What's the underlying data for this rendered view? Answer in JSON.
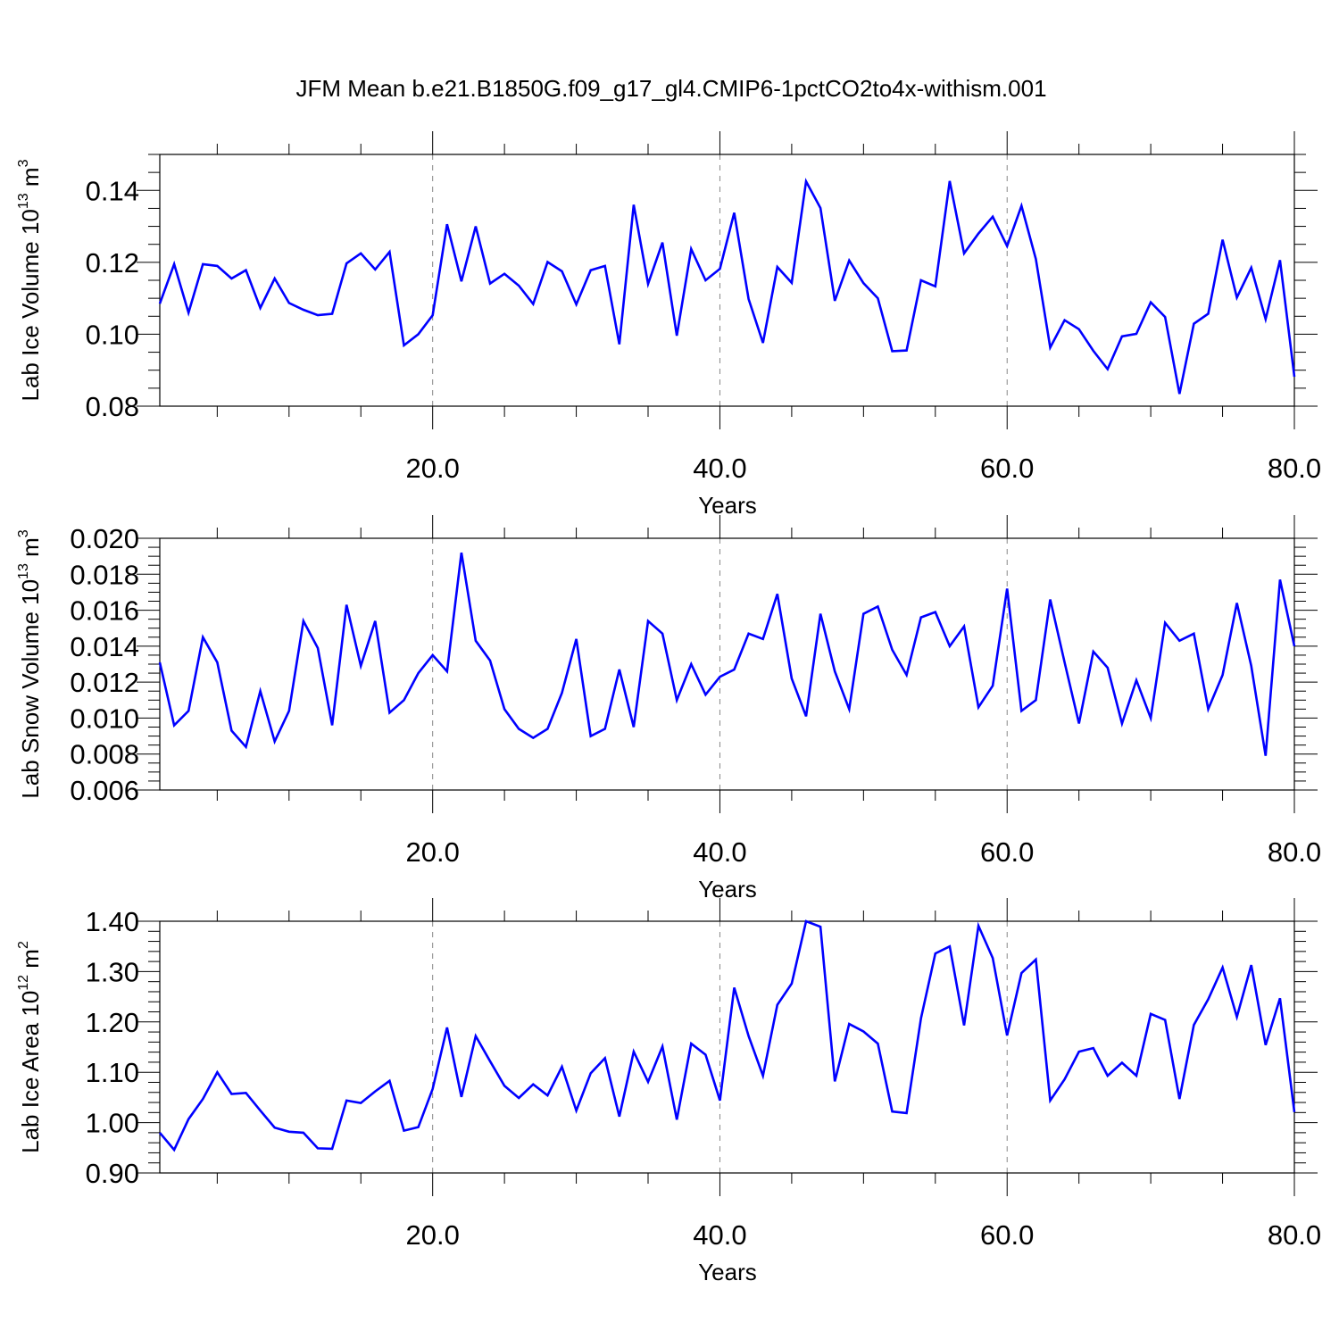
{
  "title": "JFM Mean b.e21.B1850G.f09_g17_gl4.CMIP6-1pctCO2to4x-withism.001",
  "colors": {
    "series": "#0000ff",
    "axis": "#000000",
    "grid": "#888888"
  },
  "chart_data": [
    {
      "type": "line",
      "ylabel_main": "Lab Ice Volume 10",
      "ylabel_exp": "13",
      "ylabel_unit": " m",
      "ylabel_unit_exp": "3",
      "xlabel": "Years",
      "xlim": [
        1,
        80
      ],
      "ylim": [
        0.08,
        0.15
      ],
      "xticks": [
        20,
        40,
        60,
        80
      ],
      "xtick_labels": [
        "20.0",
        "40.0",
        "60.0",
        "80.0"
      ],
      "yticks": [
        0.08,
        0.1,
        0.12,
        0.14
      ],
      "ytick_labels": [
        "0.08",
        "0.10",
        "0.12",
        "0.14"
      ],
      "ymajor_step": 0.02,
      "yminor_step": 0.005,
      "xgrid": [
        20,
        40,
        60
      ],
      "series": [
        {
          "x": [
            1,
            2,
            3,
            4,
            5,
            6,
            7,
            8,
            9,
            10,
            11,
            12,
            13,
            14,
            15,
            16,
            17,
            18,
            19,
            20,
            21,
            22,
            23,
            24,
            25,
            26,
            27,
            28,
            29,
            30,
            31,
            32,
            33,
            34,
            35,
            36,
            37,
            38,
            39,
            40,
            41,
            42,
            43,
            44,
            45,
            46,
            47,
            48,
            49,
            50,
            51,
            52,
            53,
            54,
            55,
            56,
            57,
            58,
            59,
            60,
            61,
            62,
            63,
            64,
            65,
            66,
            67,
            68,
            69,
            70,
            71,
            72,
            73,
            74,
            75,
            76,
            77,
            78,
            79,
            80
          ],
          "values": [
            0.1085,
            0.1195,
            0.106,
            0.1195,
            0.119,
            0.1155,
            0.1178,
            0.1073,
            0.1155,
            0.1087,
            0.1068,
            0.1053,
            0.1057,
            0.1197,
            0.1225,
            0.118,
            0.1229,
            0.0969,
            0.1,
            0.1053,
            0.1306,
            0.1147,
            0.13,
            0.1141,
            0.1168,
            0.1135,
            0.1084,
            0.1201,
            0.1175,
            0.1083,
            0.1178,
            0.119,
            0.0972,
            0.136,
            0.114,
            0.1255,
            0.0996,
            0.1237,
            0.115,
            0.1182,
            0.1338,
            0.1098,
            0.0976,
            0.1187,
            0.1143,
            0.1425,
            0.1351,
            0.1093,
            0.1205,
            0.1142,
            0.11,
            0.0953,
            0.0955,
            0.115,
            0.1133,
            0.1426,
            0.1225,
            0.128,
            0.1327,
            0.1245,
            0.1357,
            0.1209,
            0.0963,
            0.1039,
            0.1014,
            0.0954,
            0.0903,
            0.0994,
            0.1001,
            0.1089,
            0.1048,
            0.0834,
            0.1029,
            0.1057,
            0.1263,
            0.1102,
            0.1185,
            0.1042,
            0.1206,
            0.0882
          ]
        }
      ]
    },
    {
      "type": "line",
      "ylabel_main": "Lab Snow Volume 10",
      "ylabel_exp": "13",
      "ylabel_unit": " m",
      "ylabel_unit_exp": "3",
      "xlabel": "Years",
      "xlim": [
        1,
        80
      ],
      "ylim": [
        0.006,
        0.02
      ],
      "xticks": [
        20,
        40,
        60,
        80
      ],
      "xtick_labels": [
        "20.0",
        "40.0",
        "60.0",
        "80.0"
      ],
      "yticks": [
        0.006,
        0.008,
        0.01,
        0.012,
        0.014,
        0.016,
        0.018,
        0.02
      ],
      "ytick_labels": [
        "0.006",
        "0.008",
        "0.010",
        "0.012",
        "0.014",
        "0.016",
        "0.018",
        "0.020"
      ],
      "ymajor_step": 0.002,
      "yminor_step": 0.0005,
      "xgrid": [
        20,
        40,
        60
      ],
      "series": [
        {
          "x": [
            1,
            2,
            3,
            4,
            5,
            6,
            7,
            8,
            9,
            10,
            11,
            12,
            13,
            14,
            15,
            16,
            17,
            18,
            19,
            20,
            21,
            22,
            23,
            24,
            25,
            26,
            27,
            28,
            29,
            30,
            31,
            32,
            33,
            34,
            35,
            36,
            37,
            38,
            39,
            40,
            41,
            42,
            43,
            44,
            45,
            46,
            47,
            48,
            49,
            50,
            51,
            52,
            53,
            54,
            55,
            56,
            57,
            58,
            59,
            60,
            61,
            62,
            63,
            64,
            65,
            66,
            67,
            68,
            69,
            70,
            71,
            72,
            73,
            74,
            75,
            76,
            77,
            78,
            79,
            80
          ],
          "values": [
            0.0131,
            0.0096,
            0.0104,
            0.0145,
            0.0131,
            0.0093,
            0.0084,
            0.0115,
            0.0087,
            0.0104,
            0.0154,
            0.0139,
            0.0096,
            0.0163,
            0.0129,
            0.0154,
            0.0103,
            0.011,
            0.0125,
            0.0135,
            0.0126,
            0.0192,
            0.0143,
            0.0132,
            0.0105,
            0.0094,
            0.0089,
            0.0094,
            0.0114,
            0.0144,
            0.009,
            0.0094,
            0.0127,
            0.0095,
            0.0154,
            0.0147,
            0.011,
            0.013,
            0.0113,
            0.0123,
            0.0127,
            0.0147,
            0.0144,
            0.0169,
            0.0122,
            0.0101,
            0.0158,
            0.0126,
            0.0105,
            0.0158,
            0.0162,
            0.0138,
            0.0124,
            0.0156,
            0.0159,
            0.014,
            0.0151,
            0.0106,
            0.0118,
            0.0172,
            0.0104,
            0.011,
            0.0166,
            0.0131,
            0.0097,
            0.0137,
            0.0128,
            0.0097,
            0.0121,
            0.01,
            0.0153,
            0.0143,
            0.0147,
            0.0105,
            0.0124,
            0.0164,
            0.0129,
            0.0079,
            0.0177,
            0.014
          ]
        }
      ]
    },
    {
      "type": "line",
      "ylabel_main": "Lab Ice Area 10",
      "ylabel_exp": "12",
      "ylabel_unit": " m",
      "ylabel_unit_exp": "2",
      "xlabel": "Years",
      "xlim": [
        1,
        80
      ],
      "ylim": [
        0.9,
        1.4
      ],
      "xticks": [
        20,
        40,
        60,
        80
      ],
      "xtick_labels": [
        "20.0",
        "40.0",
        "60.0",
        "80.0"
      ],
      "yticks": [
        0.9,
        1.0,
        1.1,
        1.2,
        1.3,
        1.4
      ],
      "ytick_labels": [
        "0.90",
        "1.00",
        "1.10",
        "1.20",
        "1.30",
        "1.40"
      ],
      "ymajor_step": 0.1,
      "yminor_step": 0.02,
      "xgrid": [
        20,
        40,
        60
      ],
      "series": [
        {
          "x": [
            1,
            2,
            3,
            4,
            5,
            6,
            7,
            8,
            9,
            10,
            11,
            12,
            13,
            14,
            15,
            16,
            17,
            18,
            19,
            20,
            21,
            22,
            23,
            24,
            25,
            26,
            27,
            28,
            29,
            30,
            31,
            32,
            33,
            34,
            35,
            36,
            37,
            38,
            39,
            40,
            41,
            42,
            43,
            44,
            45,
            46,
            47,
            48,
            49,
            50,
            51,
            52,
            53,
            54,
            55,
            56,
            57,
            58,
            59,
            60,
            61,
            62,
            63,
            64,
            65,
            66,
            67,
            68,
            69,
            70,
            71,
            72,
            73,
            74,
            75,
            76,
            77,
            78,
            79,
            80
          ],
          "values": [
            0.98,
            0.946,
            1.007,
            1.047,
            1.1,
            1.057,
            1.059,
            1.024,
            0.99,
            0.982,
            0.98,
            0.949,
            0.948,
            1.044,
            1.039,
            1.062,
            1.083,
            0.984,
            0.991,
            1.067,
            1.189,
            1.051,
            1.172,
            1.122,
            1.073,
            1.049,
            1.076,
            1.054,
            1.111,
            1.024,
            1.098,
            1.128,
            1.012,
            1.141,
            1.081,
            1.151,
            1.006,
            1.157,
            1.135,
            1.044,
            1.268,
            1.172,
            1.093,
            1.234,
            1.276,
            1.4,
            1.389,
            1.082,
            1.196,
            1.181,
            1.157,
            1.022,
            1.019,
            1.207,
            1.336,
            1.35,
            1.193,
            1.391,
            1.327,
            1.173,
            1.297,
            1.324,
            1.044,
            1.086,
            1.141,
            1.148,
            1.093,
            1.119,
            1.093,
            1.216,
            1.204,
            1.047,
            1.194,
            1.245,
            1.308,
            1.21,
            1.313,
            1.154,
            1.247,
            1.021
          ]
        }
      ]
    }
  ]
}
